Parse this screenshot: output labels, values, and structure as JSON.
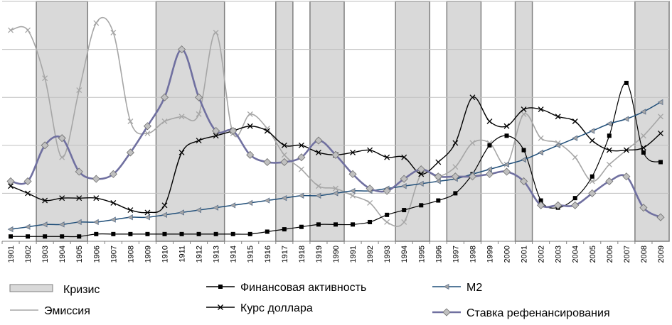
{
  "chart_data": {
    "type": "line",
    "title": "",
    "xlabel": "",
    "ylabel": "",
    "categories": [
      "1901",
      "1902",
      "1903",
      "1904",
      "1905",
      "1906",
      "1907",
      "1908",
      "1909",
      "1910",
      "1911",
      "1912",
      "1913",
      "1914",
      "1915",
      "1916",
      "1917",
      "1918",
      "1919",
      "1990",
      "1991",
      "1992",
      "1993",
      "1994",
      "1995",
      "1996",
      "1997",
      "1998",
      "1999",
      "2000",
      "2001",
      "2002",
      "2003",
      "2004",
      "2005",
      "2006",
      "2007",
      "2008",
      "2009"
    ],
    "grid": "horizontal",
    "legend_position": "bottom",
    "crisis_periods": [
      {
        "from": "1903",
        "to": "1905"
      },
      {
        "from": "1910",
        "to": "1913"
      },
      {
        "from": "1917",
        "to": "1917"
      },
      {
        "from": "1919",
        "to": "1990"
      },
      {
        "from": "1994",
        "to": "1995"
      },
      {
        "from": "1997",
        "to": "1998"
      },
      {
        "from": "2001",
        "to": "2001"
      },
      {
        "from": "2008",
        "to": "2009"
      }
    ],
    "legend": [
      {
        "label": "Кризис",
        "kind": "band",
        "color": "#d9d9d9"
      },
      {
        "label": "Эмиссия",
        "kind": "line",
        "color": "#a6a6a6"
      },
      {
        "label": "Финансовая активность",
        "kind": "line-square",
        "color": "#000000"
      },
      {
        "label": "Курс доллара",
        "kind": "line-x",
        "color": "#000000"
      },
      {
        "label": "М2",
        "kind": "line-triangle",
        "color": "#1f4e79"
      },
      {
        "label": "Ставка рефенансирования",
        "kind": "line-diamond",
        "color": "#7070a0"
      }
    ],
    "series": [
      {
        "name": "Эмиссия",
        "color": "#a6a6a6",
        "marker": "x",
        "values": [
          88,
          88,
          68,
          35,
          63,
          91,
          87,
          50,
          45,
          50,
          52,
          53,
          87,
          45,
          53,
          47,
          36,
          30,
          23,
          22,
          19,
          16,
          8,
          8,
          28,
          27,
          31,
          41,
          41,
          32,
          53,
          43,
          41,
          35,
          25,
          32,
          38,
          44,
          52
        ]
      },
      {
        "name": "Финансовая активность",
        "color": "#000000",
        "marker": "square",
        "values": [
          2,
          2,
          2,
          2,
          2,
          3,
          3,
          3,
          3,
          3,
          3,
          3,
          3,
          3,
          3,
          4,
          5,
          6,
          7,
          7,
          7,
          8,
          11,
          13,
          15,
          17,
          20,
          28,
          40,
          44,
          38,
          17,
          14,
          18,
          27,
          44,
          66,
          37,
          33
        ]
      },
      {
        "name": "Курс доллара",
        "color": "#000000",
        "marker": "x",
        "values": [
          23,
          20,
          17,
          18,
          18,
          18,
          16,
          13,
          12,
          15,
          37,
          42,
          44,
          46,
          48,
          46,
          40,
          40,
          37,
          36,
          37,
          38,
          35,
          35,
          28,
          33,
          41,
          60,
          50,
          48,
          55,
          55,
          52,
          50,
          42,
          38,
          38,
          39,
          45
        ]
      },
      {
        "name": "М2",
        "color": "#1f4e79",
        "marker": "triangle",
        "values": [
          5,
          6,
          7,
          7,
          8,
          8,
          9,
          10,
          10,
          11,
          12,
          13,
          14,
          15,
          16,
          17,
          18,
          19,
          19,
          20,
          21,
          21,
          22,
          23,
          24,
          25,
          26,
          28,
          30,
          32,
          34,
          37,
          40,
          43,
          46,
          49,
          51,
          54,
          58
        ]
      },
      {
        "name": "Ставка рефенансирования",
        "color": "#7070a0",
        "marker": "diamond",
        "values": [
          25,
          25,
          40,
          43,
          29,
          26,
          28,
          37,
          48,
          60,
          80,
          60,
          46,
          46,
          36,
          33,
          33,
          35,
          42,
          36,
          28,
          22,
          21,
          26,
          30,
          27,
          27,
          27,
          28,
          29,
          25,
          15,
          15,
          15,
          20,
          25,
          27,
          14,
          10
        ]
      }
    ]
  }
}
